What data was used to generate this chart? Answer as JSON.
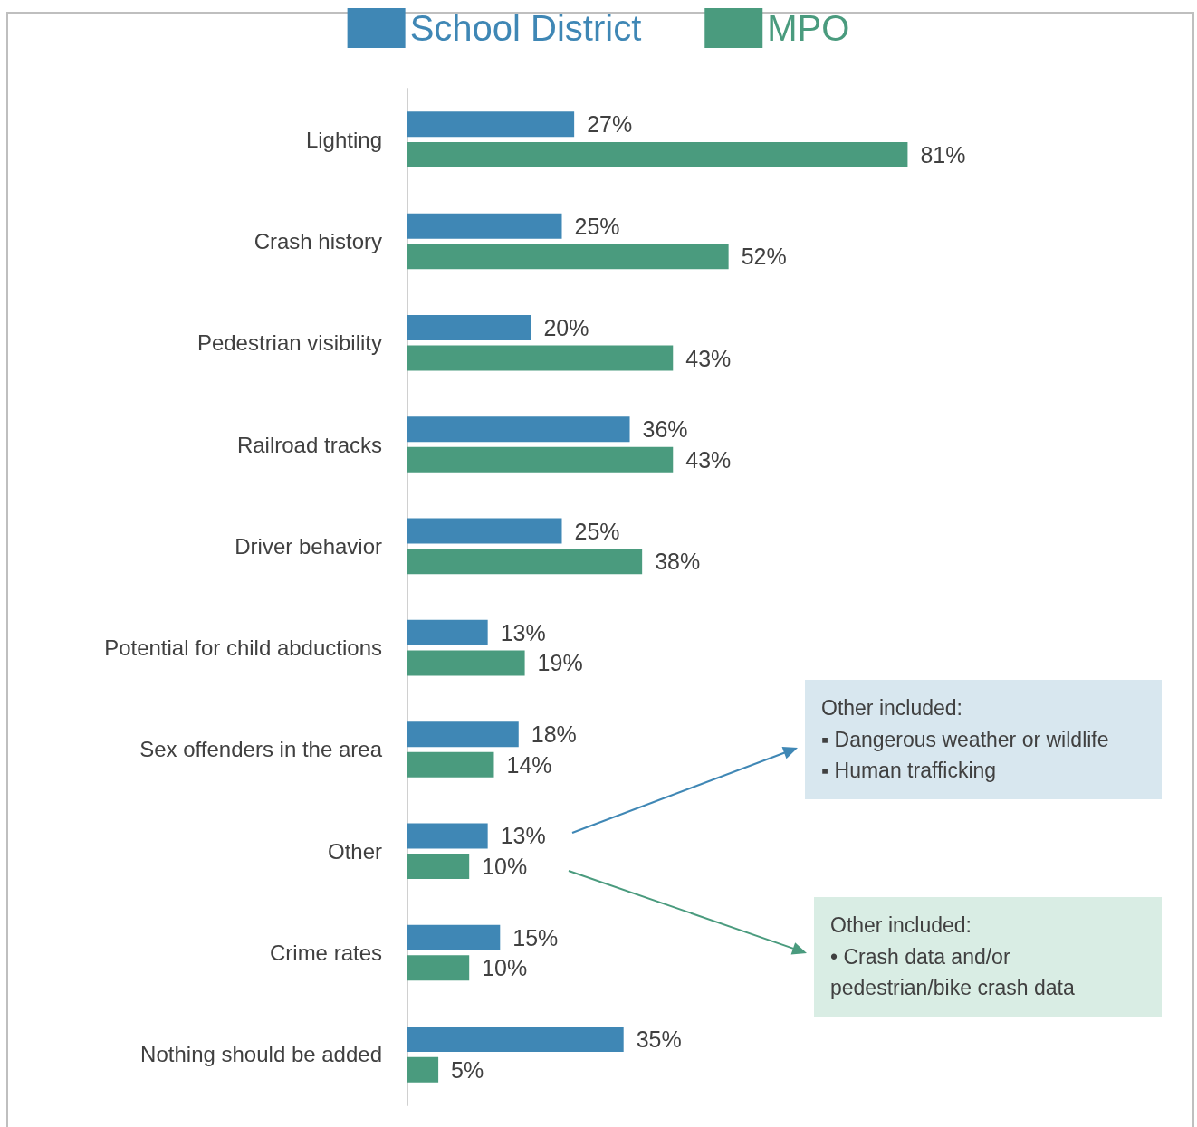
{
  "chart_data": {
    "type": "bar",
    "orientation": "horizontal",
    "categories": [
      "Lighting",
      "Crash history",
      "Pedestrian visibility",
      "Railroad tracks",
      "Driver behavior",
      "Potential for child abductions",
      "Sex offenders in the area",
      "Other",
      "Crime rates",
      "Nothing should be added"
    ],
    "series": [
      {
        "name": "School District",
        "color": "#3f87b5",
        "values": [
          27,
          25,
          20,
          36,
          25,
          13,
          18,
          13,
          15,
          35
        ],
        "value_labels": [
          "27%",
          "25%",
          "20%",
          "36%",
          "25%",
          "13%",
          "18%",
          "13%",
          "15%",
          "35%"
        ]
      },
      {
        "name": "MPO",
        "color": "#4a9b7e",
        "values": [
          81,
          52,
          43,
          43,
          38,
          19,
          14,
          10,
          10,
          5
        ],
        "value_labels": [
          "81%",
          "52%",
          "43%",
          "43%",
          "38%",
          "19%",
          "14%",
          "10%",
          "10%",
          "5%"
        ]
      }
    ],
    "annotations": [
      "Other included:\n▪ Dangerous weather or wildlife\n▪ Human trafficking",
      "Other included:\n• Crash data and/or pedestrian/bike crash data"
    ],
    "legend": "top",
    "grid": false,
    "tick_labels": "y"
  }
}
